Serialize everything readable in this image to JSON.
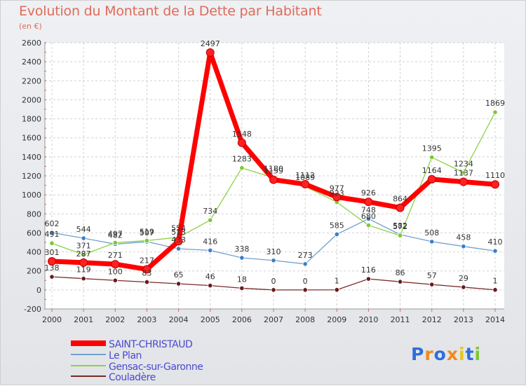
{
  "title": "Evolution du Montant de la Dette par Habitant",
  "unit_label": "(en €)",
  "logo_text": "Proxiti",
  "chart_data": {
    "type": "line",
    "title": "Evolution du Montant de la Dette par Habitant",
    "subtitle": "(en €)",
    "xlabel": "",
    "ylabel": "",
    "x": [
      "2000",
      "2001",
      "2002",
      "2003",
      "2004",
      "2005",
      "2006",
      "2007",
      "2008",
      "2009",
      "2010",
      "2011",
      "2012",
      "2013",
      "2014"
    ],
    "ylim": [
      -200,
      2600
    ],
    "yticks": [
      -200,
      0,
      200,
      400,
      600,
      800,
      1000,
      1200,
      1400,
      1600,
      1800,
      2000,
      2200,
      2400,
      2600
    ],
    "grid": true,
    "legend_position": "bottom-left",
    "series": [
      {
        "name": "SAINT-CHRISTAUD",
        "color": "#ff0000",
        "values": [
          301,
          287,
          271,
          217,
          513,
          2497,
          1548,
          1159,
          1112,
          977,
          926,
          864,
          1164,
          1137,
          1110
        ]
      },
      {
        "name": "Le Plan",
        "color": "#6fa0d0",
        "values": [
          602,
          544,
          482,
          507,
          433,
          416,
          338,
          310,
          273,
          585,
          748,
          582,
          508,
          458,
          410
        ]
      },
      {
        "name": "Gensac-sur-Garonne",
        "color": "#8ed04a",
        "values": [
          491,
          371,
          497,
          519,
          554,
          734,
          1283,
          1180,
          1089,
          923,
          680,
          572,
          1395,
          1234,
          1869
        ]
      },
      {
        "name": "Couladère",
        "color": "#7a2a2a",
        "values": [
          138,
          119,
          100,
          83,
          65,
          46,
          18,
          0,
          0,
          1,
          116,
          86,
          57,
          29,
          1
        ]
      }
    ]
  }
}
